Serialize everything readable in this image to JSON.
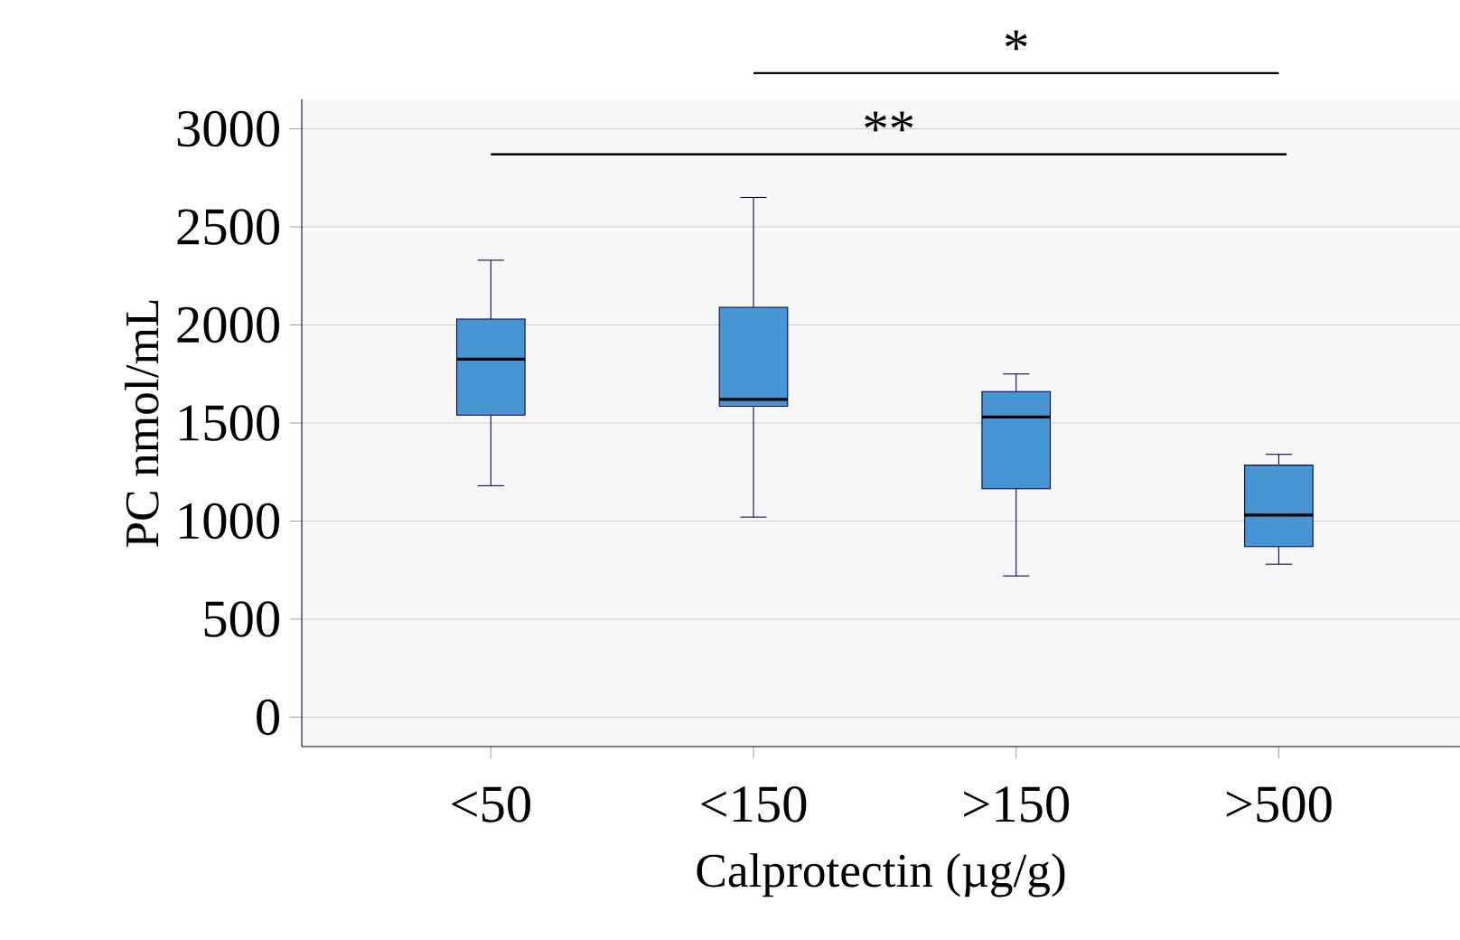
{
  "chart_data": {
    "type": "box",
    "xlabel": "Calprotectin (µg/g)",
    "ylabel": "PC  nmol/mL",
    "categories": [
      "<50",
      "<150",
      ">150",
      ">500"
    ],
    "boxes": [
      {
        "low": 1180,
        "q1": 1540,
        "median": 1825,
        "q3": 2030,
        "high": 2330
      },
      {
        "low": 1020,
        "q1": 1585,
        "median": 1620,
        "q3": 2090,
        "high": 2650
      },
      {
        "low": 720,
        "q1": 1165,
        "median": 1530,
        "q3": 1660,
        "high": 1750
      },
      {
        "low": 780,
        "q1": 870,
        "median": 1030,
        "q3": 1285,
        "high": 1340
      }
    ],
    "color": "#4796d3",
    "ylim": [
      -150,
      3150
    ],
    "yticks": [
      0,
      500,
      1000,
      1500,
      2000,
      2500,
      3000
    ],
    "grid": "y",
    "annotations": [
      "*",
      "**"
    ]
  }
}
